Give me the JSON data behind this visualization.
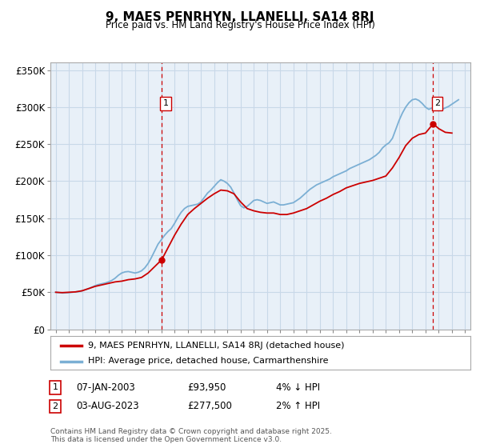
{
  "title": "9, MAES PENRHYN, LLANELLI, SA14 8RJ",
  "subtitle": "Price paid vs. HM Land Registry's House Price Index (HPI)",
  "ylabel_ticks": [
    "£0",
    "£50K",
    "£100K",
    "£150K",
    "£200K",
    "£250K",
    "£300K",
    "£350K"
  ],
  "ytick_values": [
    0,
    50000,
    100000,
    150000,
    200000,
    250000,
    300000,
    350000
  ],
  "ylim": [
    0,
    360000
  ],
  "xlim_start": 1994.6,
  "xlim_end": 2026.4,
  "legend_line1": "9, MAES PENRHYN, LLANELLI, SA14 8RJ (detached house)",
  "legend_line2": "HPI: Average price, detached house, Carmarthenshire",
  "marker1_date": "07-JAN-2003",
  "marker1_price": "£93,950",
  "marker1_hpi": "4% ↓ HPI",
  "marker1_x": 2003.03,
  "marker1_y": 93950,
  "marker2_date": "03-AUG-2023",
  "marker2_price": "£277,500",
  "marker2_hpi": "2% ↑ HPI",
  "marker2_x": 2023.58,
  "marker2_y": 277500,
  "line_color_price": "#cc0000",
  "line_color_hpi": "#7bafd4",
  "vline_color": "#cc0000",
  "grid_color": "#c8d8e8",
  "plot_bg_color": "#e8f0f8",
  "fig_bg_color": "#ffffff",
  "footer": "Contains HM Land Registry data © Crown copyright and database right 2025.\nThis data is licensed under the Open Government Licence v3.0.",
  "hpi_data_x": [
    1995.0,
    1995.25,
    1995.5,
    1995.75,
    1996.0,
    1996.25,
    1996.5,
    1996.75,
    1997.0,
    1997.25,
    1997.5,
    1997.75,
    1998.0,
    1998.25,
    1998.5,
    1998.75,
    1999.0,
    1999.25,
    1999.5,
    1999.75,
    2000.0,
    2000.25,
    2000.5,
    2000.75,
    2001.0,
    2001.25,
    2001.5,
    2001.75,
    2002.0,
    2002.25,
    2002.5,
    2002.75,
    2003.0,
    2003.25,
    2003.5,
    2003.75,
    2004.0,
    2004.25,
    2004.5,
    2004.75,
    2005.0,
    2005.25,
    2005.5,
    2005.75,
    2006.0,
    2006.25,
    2006.5,
    2006.75,
    2007.0,
    2007.25,
    2007.5,
    2007.75,
    2008.0,
    2008.25,
    2008.5,
    2008.75,
    2009.0,
    2009.25,
    2009.5,
    2009.75,
    2010.0,
    2010.25,
    2010.5,
    2010.75,
    2011.0,
    2011.25,
    2011.5,
    2011.75,
    2012.0,
    2012.25,
    2012.5,
    2012.75,
    2013.0,
    2013.25,
    2013.5,
    2013.75,
    2014.0,
    2014.25,
    2014.5,
    2014.75,
    2015.0,
    2015.25,
    2015.5,
    2015.75,
    2016.0,
    2016.25,
    2016.5,
    2016.75,
    2017.0,
    2017.25,
    2017.5,
    2017.75,
    2018.0,
    2018.25,
    2018.5,
    2018.75,
    2019.0,
    2019.25,
    2019.5,
    2019.75,
    2020.0,
    2020.25,
    2020.5,
    2020.75,
    2021.0,
    2021.25,
    2021.5,
    2021.75,
    2022.0,
    2022.25,
    2022.5,
    2022.75,
    2023.0,
    2023.25,
    2023.5,
    2023.75,
    2024.0,
    2024.25,
    2024.5,
    2024.75,
    2025.0,
    2025.25,
    2025.5
  ],
  "hpi_data_y": [
    50000,
    49500,
    49000,
    49200,
    49500,
    50000,
    50500,
    51000,
    52000,
    53500,
    55000,
    57000,
    59000,
    60500,
    61500,
    62500,
    64000,
    66000,
    69000,
    73000,
    76000,
    77500,
    78000,
    77000,
    76000,
    77000,
    79000,
    83000,
    89000,
    97000,
    106000,
    115000,
    121000,
    127000,
    132000,
    136000,
    143000,
    151000,
    158000,
    163000,
    166000,
    167000,
    168000,
    169000,
    172000,
    178000,
    184000,
    188000,
    193000,
    198000,
    202000,
    200000,
    197000,
    192000,
    184000,
    175000,
    167000,
    164000,
    166000,
    170000,
    174000,
    175000,
    174000,
    172000,
    170000,
    171000,
    172000,
    170000,
    168000,
    168000,
    169000,
    170000,
    171000,
    174000,
    177000,
    181000,
    185000,
    189000,
    192000,
    195000,
    197000,
    199000,
    201000,
    203000,
    206000,
    208000,
    210000,
    212000,
    214000,
    217000,
    219000,
    221000,
    223000,
    225000,
    227000,
    229000,
    232000,
    235000,
    239000,
    245000,
    249000,
    252000,
    258000,
    270000,
    282000,
    292000,
    300000,
    306000,
    310000,
    311000,
    309000,
    305000,
    300000,
    297000,
    299000,
    297000,
    295000,
    297000,
    299000,
    301000,
    304000,
    307000,
    310000
  ],
  "price_data_x": [
    1995.0,
    1995.5,
    1996.0,
    1996.5,
    1997.0,
    1997.5,
    1998.0,
    1998.5,
    1999.0,
    1999.5,
    2000.0,
    2000.5,
    2001.0,
    2001.5,
    2002.0,
    2003.03,
    2003.5,
    2004.0,
    2004.5,
    2005.0,
    2005.5,
    2006.0,
    2006.5,
    2007.0,
    2007.5,
    2008.0,
    2008.5,
    2009.0,
    2009.5,
    2010.0,
    2010.5,
    2011.0,
    2011.5,
    2012.0,
    2012.5,
    2013.0,
    2013.5,
    2014.0,
    2014.5,
    2015.0,
    2015.5,
    2016.0,
    2016.5,
    2017.0,
    2017.5,
    2018.0,
    2018.5,
    2019.0,
    2019.5,
    2020.0,
    2020.5,
    2021.0,
    2021.5,
    2022.0,
    2022.5,
    2023.0,
    2023.58,
    2024.0,
    2024.5,
    2025.0
  ],
  "price_data_y": [
    50000,
    49500,
    50000,
    50500,
    52000,
    55000,
    58000,
    60000,
    62000,
    64000,
    65000,
    67000,
    68000,
    70000,
    76000,
    93950,
    110000,
    127000,
    142000,
    155000,
    163000,
    170000,
    177000,
    183000,
    188000,
    187000,
    183000,
    172000,
    163000,
    160000,
    158000,
    157000,
    157000,
    155000,
    155000,
    157000,
    160000,
    163000,
    168000,
    173000,
    177000,
    182000,
    186000,
    191000,
    194000,
    197000,
    199000,
    201000,
    204000,
    207000,
    218000,
    232000,
    248000,
    258000,
    263000,
    265000,
    277500,
    271000,
    266000,
    265000
  ]
}
